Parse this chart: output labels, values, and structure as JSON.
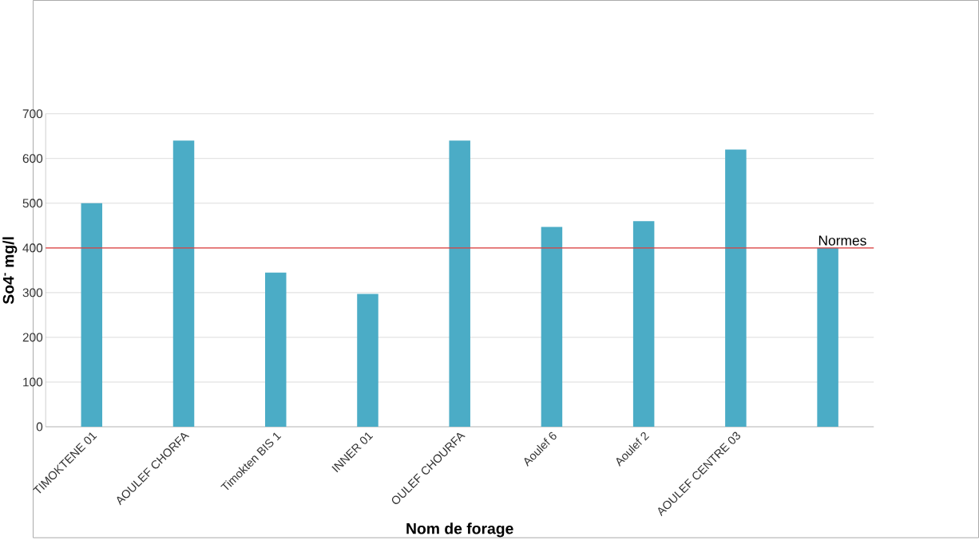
{
  "chart_data": {
    "type": "bar",
    "xlabel": "Nom de forage",
    "ylabel": "So4$^{-}$ mg/l",
    "categories": [
      "TIMOKTENE 01",
      "AOULEF CHORFA",
      "Timokten BIS 1",
      "INNER 01",
      "OULEF CHOURFA",
      "Aoulef 6",
      "Aoulef 2",
      "AOULEF CENTRE 03",
      null
    ],
    "values": [
      500,
      640,
      345,
      297,
      640,
      447,
      460,
      620,
      400
    ],
    "color": "#4bacc6",
    "ylim": [
      0,
      700
    ],
    "yticks": [
      0,
      100,
      200,
      300,
      400,
      500,
      600,
      700
    ],
    "grid": "y",
    "ref_lines": [
      {
        "axis": "y",
        "value": 400,
        "label": "Normes",
        "color": "#e03c3c"
      }
    ]
  }
}
